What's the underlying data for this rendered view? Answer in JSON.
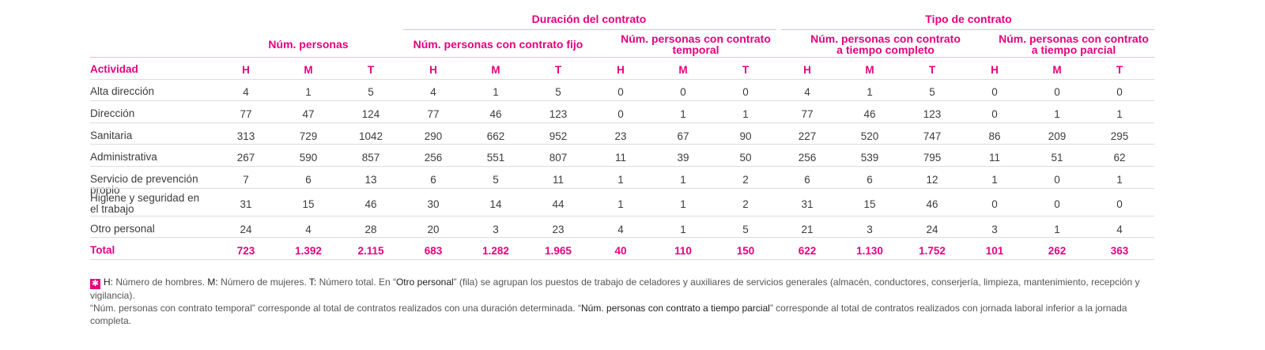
{
  "groups": {
    "duracion": "Duración del contrato",
    "tipo": "Tipo de contrato"
  },
  "col_groups": [
    "Núm. personas",
    "Núm. personas con contrato fijo",
    "Núm. personas con contrato temporal",
    "Núm. personas con contrato a tiempo completo",
    "Núm. personas con contrato a tiempo parcial"
  ],
  "header_row": [
    "Actividad",
    "H",
    "M",
    "T",
    "H",
    "M",
    "T",
    "H",
    "M",
    "T",
    "H",
    "M",
    "T",
    "H",
    "M",
    "T"
  ],
  "rows": [
    [
      "Alta dirección",
      "4",
      "1",
      "5",
      "4",
      "1",
      "5",
      "0",
      "0",
      "0",
      "4",
      "1",
      "5",
      "0",
      "0",
      "0"
    ],
    [
      "Dirección",
      "77",
      "47",
      "124",
      "77",
      "46",
      "123",
      "0",
      "1",
      "1",
      "77",
      "46",
      "123",
      "0",
      "1",
      "1"
    ],
    [
      "Sanitaria",
      "313",
      "729",
      "1042",
      "290",
      "662",
      "952",
      "23",
      "67",
      "90",
      "227",
      "520",
      "747",
      "86",
      "209",
      "295"
    ],
    [
      "Administrativa",
      "267",
      "590",
      "857",
      "256",
      "551",
      "807",
      "11",
      "39",
      "50",
      "256",
      "539",
      "795",
      "11",
      "51",
      "62"
    ],
    [
      "Servicio de prevención propio",
      "7",
      "6",
      "13",
      "6",
      "5",
      "11",
      "1",
      "1",
      "2",
      "6",
      "6",
      "12",
      "1",
      "0",
      "1"
    ],
    [
      "Higiene y seguridad en el trabajo",
      "31",
      "15",
      "46",
      "30",
      "14",
      "44",
      "1",
      "1",
      "2",
      "31",
      "15",
      "46",
      "0",
      "0",
      "0"
    ],
    [
      "Otro personal",
      "24",
      "4",
      "28",
      "20",
      "3",
      "23",
      "4",
      "1",
      "5",
      "21",
      "3",
      "24",
      "3",
      "1",
      "4"
    ]
  ],
  "total_row": [
    "Total",
    "723",
    "1.392",
    "2.115",
    "683",
    "1.282",
    "1.965",
    "40",
    "110",
    "150",
    "622",
    "1.130",
    "1.752",
    "101",
    "262",
    "363"
  ],
  "note": {
    "icon": "asterisk-icon",
    "p1_h": "H:",
    "p1_a": " Número de hombres. ",
    "p1_m": "M:",
    "p1_b": " Número de mujeres. ",
    "p1_t": "T:",
    "p1_c": " Número total. En “",
    "p1_otro": "Otro personal",
    "p1_d": "” (fila) se agrupan los puestos de trabajo de celadores y auxiliares de servicios generales (almacén, conductores, conserjería, limpieza, mantenimiento, recepción y vigilancia).",
    "p2_a": "“Núm. personas con contrato temporal” corresponde al total de contratos realizados con una duración determinada. “",
    "p2_parcial": "Núm. personas con contrato a tiempo parcial",
    "p2_b": "” corresponde al total de contratos realizados con jornada laboral inferior a la jornada completa."
  },
  "colors": {
    "accent": "#e6007e",
    "rule": "#dcdcdc",
    "accent_rule": "#f7b6d6"
  }
}
